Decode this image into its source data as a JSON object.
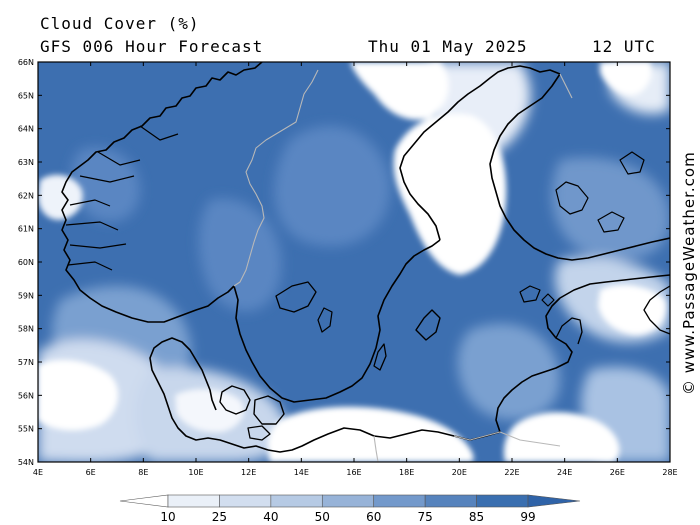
{
  "title": "Cloud Cover (%)",
  "subtitle": "GFS 006 Hour Forecast",
  "valid_date": "Thu 01 May 2025",
  "valid_time": "12 UTC",
  "credit": "© www.PassageWeather.com",
  "latitude_labels": [
    "66N",
    "65N",
    "64N",
    "63N",
    "62N",
    "61N",
    "60N",
    "59N",
    "58N",
    "57N",
    "56N",
    "55N",
    "54N"
  ],
  "longitude_labels": [
    "4E",
    "6E",
    "8E",
    "10E",
    "12E",
    "14E",
    "16E",
    "18E",
    "20E",
    "22E",
    "24E",
    "26E",
    "28E"
  ],
  "legend": {
    "ticks": [
      "10",
      "25",
      "40",
      "50",
      "60",
      "75",
      "85",
      "99"
    ],
    "colors": [
      "#ffffff",
      "#eaf0f8",
      "#d2deef",
      "#b6cae4",
      "#97b3d8",
      "#7399cb",
      "#5683bd",
      "#3a6fb0",
      "#2f63a8"
    ]
  },
  "colors": {
    "coast": "#000000",
    "border": "#b8b8b8",
    "deep_cloud": "#3d6fb0",
    "clear": "#ffffff"
  }
}
